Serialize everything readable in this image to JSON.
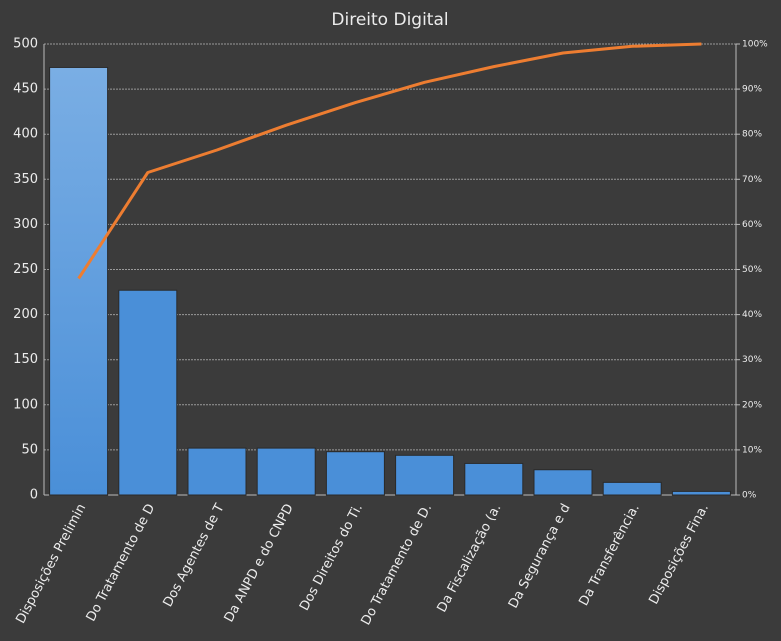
{
  "chart_data": {
    "type": "pareto",
    "title": "Direito Digital",
    "categories": [
      "Disposições Prelimin",
      "Do Tratamento de D",
      "Dos Agentes de T",
      "Da ANPD e do CNPD",
      "Dos Direitos do Ti.",
      "Do Tratamento de D.",
      "Da Fiscalização (a.",
      "Da Segurança e d",
      "Da Transferência.",
      "Disposições Fina."
    ],
    "series": [
      {
        "type": "bar",
        "color": "#4a8fd8",
        "values": [
          474,
          227,
          52,
          52,
          48,
          44,
          35,
          28,
          14,
          4
        ]
      },
      {
        "type": "line",
        "axis": "y2",
        "color": "#ed7d31",
        "values": [
          48,
          71.5,
          76.5,
          82,
          87,
          91.5,
          95,
          98,
          99.5,
          100
        ]
      }
    ],
    "ylim": [
      0,
      500
    ],
    "yticks": [
      0,
      50,
      100,
      150,
      200,
      250,
      300,
      350,
      400,
      450,
      500
    ],
    "y2lim": [
      0,
      100
    ],
    "y2ticks": [
      {
        "value": 0,
        "label": "0%"
      },
      {
        "value": 10,
        "label": "10%"
      },
      {
        "value": 20,
        "label": "20%"
      },
      {
        "value": 30,
        "label": "30%"
      },
      {
        "value": 40,
        "label": "40%"
      },
      {
        "value": 50,
        "label": "50%"
      },
      {
        "value": 60,
        "label": "60%"
      },
      {
        "value": 70,
        "label": "70%"
      },
      {
        "value": 80,
        "label": "80%"
      },
      {
        "value": 90,
        "label": "90%"
      },
      {
        "value": 100,
        "label": "100%"
      }
    ],
    "grid": true
  }
}
